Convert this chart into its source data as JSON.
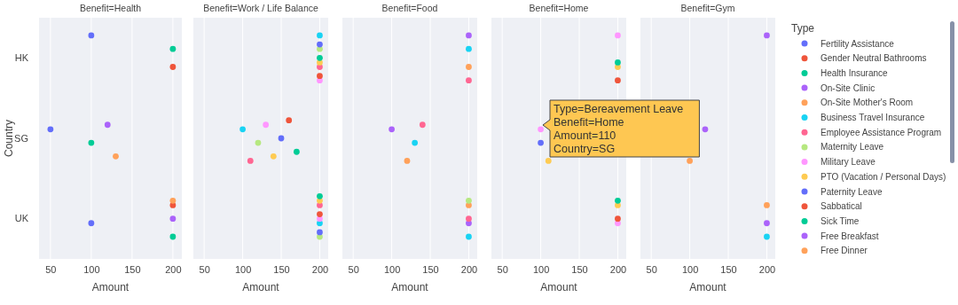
{
  "chart_data": [
    {
      "type": "scatter",
      "orientation": "horizontal",
      "title": "Benefit=Health",
      "xlabel": "Amount",
      "ylabel": "Country",
      "legend": "right",
      "legend_title": "Type",
      "categories": [
        "HK",
        "SG",
        "UK"
      ],
      "xlim": [
        36,
        211
      ],
      "xticks": [
        50,
        100,
        150,
        200
      ],
      "grid": "x",
      "series": [
        {
          "name": "Fertility Assistance",
          "color": "#636efa",
          "values": [
            100,
            50,
            100
          ]
        },
        {
          "name": "Gender Neutral Bathrooms",
          "color": "#ef553b",
          "values": [
            200,
            null,
            200
          ]
        },
        {
          "name": "Health Insurance",
          "color": "#00cc96",
          "values": [
            200,
            100,
            200
          ]
        },
        {
          "name": "On-Site Clinic",
          "color": "#ab63fa",
          "values": [
            null,
            120,
            200
          ]
        },
        {
          "name": "On-Site Mother's Room",
          "color": "#ffa15a",
          "values": [
            null,
            130,
            200
          ]
        }
      ]
    },
    {
      "type": "scatter",
      "orientation": "horizontal",
      "title": "Benefit=Work / Life Balance",
      "xlabel": "Amount",
      "legend": "right",
      "xlim": [
        36,
        211
      ],
      "xticks": [
        50,
        100,
        150,
        200
      ],
      "grid": "x",
      "tick_labels": "x",
      "series": [
        {
          "name": "Business Travel Insurance",
          "color": "#19d3f3",
          "values": [
            200,
            100,
            200
          ]
        },
        {
          "name": "Employee Assistance Program",
          "color": "#ff6692",
          "values": [
            200,
            110,
            200
          ]
        },
        {
          "name": "Maternity Leave",
          "color": "#b6e880",
          "values": [
            200,
            120,
            200
          ]
        },
        {
          "name": "Military Leave",
          "color": "#ff97ff",
          "values": [
            200,
            130,
            200
          ]
        },
        {
          "name": "PTO (Vacation / Personal Days)",
          "color": "#fecb52",
          "values": [
            200,
            140,
            200
          ]
        },
        {
          "name": "Paternity Leave",
          "color": "#636efa",
          "values": [
            200,
            150,
            200
          ]
        },
        {
          "name": "Sabbatical",
          "color": "#ef553b",
          "values": [
            200,
            160,
            200
          ]
        },
        {
          "name": "Sick Time",
          "color": "#00cc96",
          "values": [
            200,
            170,
            200
          ]
        }
      ]
    },
    {
      "type": "scatter",
      "orientation": "horizontal",
      "title": "Benefit=Food",
      "xlabel": "Amount",
      "legend": "right",
      "xlim": [
        36,
        211
      ],
      "xticks": [
        50,
        100,
        150,
        200
      ],
      "grid": "x",
      "tick_labels": "x",
      "series": [
        {
          "name": "Free Breakfast",
          "color": "#ab63fa",
          "values": [
            200,
            100,
            200
          ]
        },
        {
          "name": "Free Dinner",
          "color": "#ffa15a",
          "values": [
            200,
            120,
            200
          ]
        },
        {
          "color": "#19d3f3",
          "values": [
            200,
            130,
            200
          ]
        },
        {
          "color": "#ff6692",
          "values": [
            200,
            140,
            200
          ]
        },
        {
          "color": "#b6e880",
          "values": [
            null,
            null,
            200
          ]
        }
      ]
    },
    {
      "type": "scatter",
      "orientation": "horizontal",
      "title": "Benefit=Home",
      "xlabel": "Amount",
      "xlim": [
        36,
        211
      ],
      "xticks": [
        50,
        100,
        150,
        200
      ],
      "grid": "x",
      "tick_labels": "x",
      "annotations": [
        "Type=Bereavement Leave\nBenefit=Home\nAmount=110\nCountry=SG"
      ],
      "series": [
        {
          "color": "#ff97ff",
          "values": [
            200,
            100,
            200
          ]
        },
        {
          "color": "#fecb52",
          "values": [
            200,
            110,
            200
          ]
        },
        {
          "color": "#636efa",
          "values": [
            null,
            100,
            null
          ]
        },
        {
          "color": "#ef553b",
          "values": [
            200,
            null,
            200
          ]
        },
        {
          "color": "#00cc96",
          "values": [
            200,
            null,
            200
          ]
        }
      ]
    },
    {
      "type": "scatter",
      "orientation": "horizontal",
      "title": "Benefit=Gym",
      "xlabel": "Amount",
      "xlim": [
        36,
        211
      ],
      "xticks": [
        50,
        100,
        150,
        200
      ],
      "grid": "x",
      "tick_labels": "x",
      "series": [
        {
          "color": "#ab63fa",
          "values": [
            200,
            120,
            200
          ]
        },
        {
          "color": "#ffa15a",
          "values": [
            null,
            100,
            200
          ]
        },
        {
          "color": "#19d3f3",
          "values": [
            null,
            null,
            200
          ]
        }
      ]
    }
  ]
}
